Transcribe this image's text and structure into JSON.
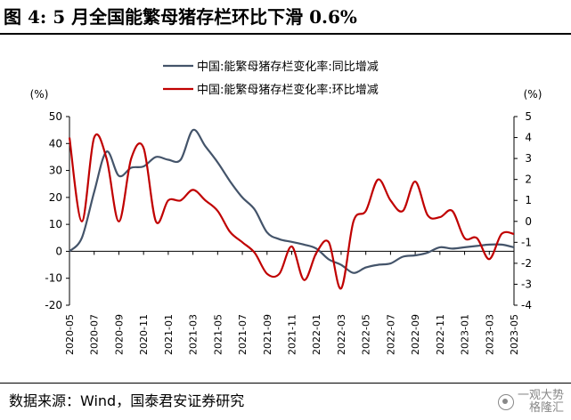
{
  "title": "图 4:  5 月全国能繁母猪存栏环比下滑 0.6%",
  "source": "数据来源：Wind，国泰君安证券研究",
  "watermark": {
    "line1": "一观大势",
    "line2": "格隆汇"
  },
  "colors": {
    "yoy": "#44546A",
    "mom": "#C00000",
    "axis": "#000000"
  },
  "chart_data": {
    "type": "line",
    "left_unit": "(%)",
    "right_unit": "(%)",
    "left_ylim": [
      -20,
      50
    ],
    "left_ticks": [
      -20,
      -10,
      0,
      10,
      20,
      30,
      40,
      50
    ],
    "right_ylim": [
      -4,
      5
    ],
    "right_ticks": [
      -4,
      -3,
      -2,
      -1,
      0,
      1,
      2,
      3,
      4,
      5
    ],
    "x_ticks": [
      "2020-05",
      "2020-07",
      "2020-09",
      "2020-11",
      "2021-01",
      "2021-03",
      "2021-05",
      "2021-07",
      "2021-09",
      "2021-11",
      "2022-01",
      "2022-03",
      "2022-05",
      "2022-07",
      "2022-09",
      "2022-11",
      "2023-01",
      "2023-03",
      "2023-05"
    ],
    "x": [
      "2020-05",
      "2020-06",
      "2020-07",
      "2020-08",
      "2020-09",
      "2020-10",
      "2020-11",
      "2020-12",
      "2021-01",
      "2021-02",
      "2021-03",
      "2021-04",
      "2021-05",
      "2021-06",
      "2021-07",
      "2021-08",
      "2021-09",
      "2021-10",
      "2021-11",
      "2021-12",
      "2022-01",
      "2022-02",
      "2022-03",
      "2022-04",
      "2022-05",
      "2022-06",
      "2022-07",
      "2022-08",
      "2022-09",
      "2022-10",
      "2022-11",
      "2022-12",
      "2023-01",
      "2023-02",
      "2023-03",
      "2023-04",
      "2023-05"
    ],
    "legend_placement": "top",
    "grid": false,
    "series": [
      {
        "name": "中国:能繁母猪存栏变化率:同比增减",
        "axis": "left",
        "values": [
          0.0,
          5.0,
          22.0,
          37.0,
          28.0,
          31.0,
          31.5,
          35.0,
          34.0,
          34.0,
          45.0,
          39.0,
          33.0,
          26.0,
          20.0,
          15.5,
          7.0,
          4.5,
          3.5,
          2.5,
          1.0,
          -3.0,
          -5.0,
          -8.0,
          -6.0,
          -5.0,
          -4.5,
          -2.0,
          -1.5,
          -0.5,
          1.5,
          1.0,
          1.5,
          2.0,
          2.5,
          2.5,
          1.5
        ]
      },
      {
        "name": "中国:能繁母猪存栏变化率:环比增减",
        "axis": "right",
        "values": [
          4.0,
          0.0,
          4.0,
          3.0,
          0.0,
          3.0,
          3.5,
          0.0,
          1.0,
          1.0,
          1.5,
          1.0,
          0.5,
          -0.5,
          -1.0,
          -1.5,
          -2.5,
          -2.5,
          -1.2,
          -2.8,
          -1.5,
          -1.0,
          -3.2,
          0.0,
          0.5,
          2.0,
          1.0,
          0.5,
          1.9,
          0.3,
          0.2,
          0.5,
          -0.8,
          -0.8,
          -1.8,
          -0.6,
          -0.6
        ]
      }
    ]
  }
}
